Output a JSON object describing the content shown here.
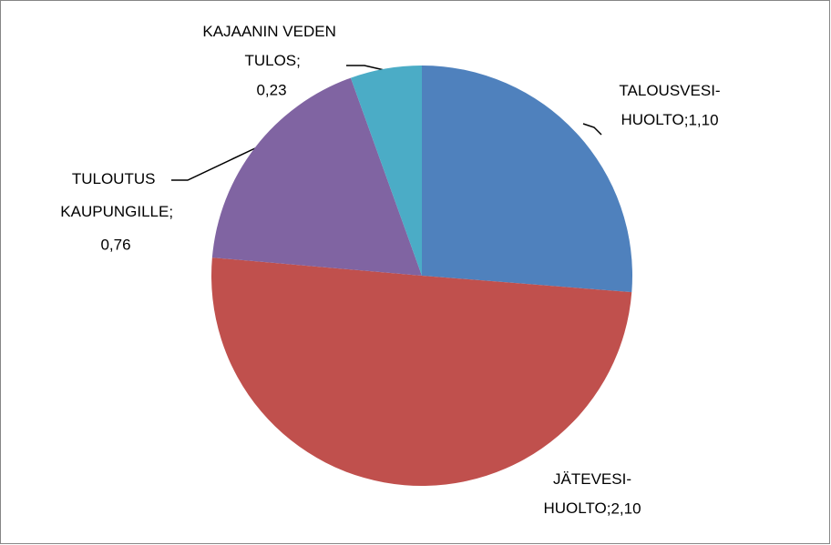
{
  "chart_data": {
    "type": "pie",
    "categories": [
      "TALOUSVESI-HUOLTO",
      "JÄTEVESI-HUOLTO",
      "TULOUTUS KAUPUNGILLE",
      "KAJAANIN VEDEN TULOS"
    ],
    "values": [
      1.1,
      2.1,
      0.76,
      0.23
    ],
    "value_labels": [
      "1,10",
      "2,10",
      "0,76",
      "0,23"
    ],
    "label_separator": "; ",
    "colors": [
      "#4f81bd",
      "#c0504d",
      "#8064a2",
      "#4bacc6"
    ],
    "start_angle": 0,
    "direction": "clockwise"
  }
}
